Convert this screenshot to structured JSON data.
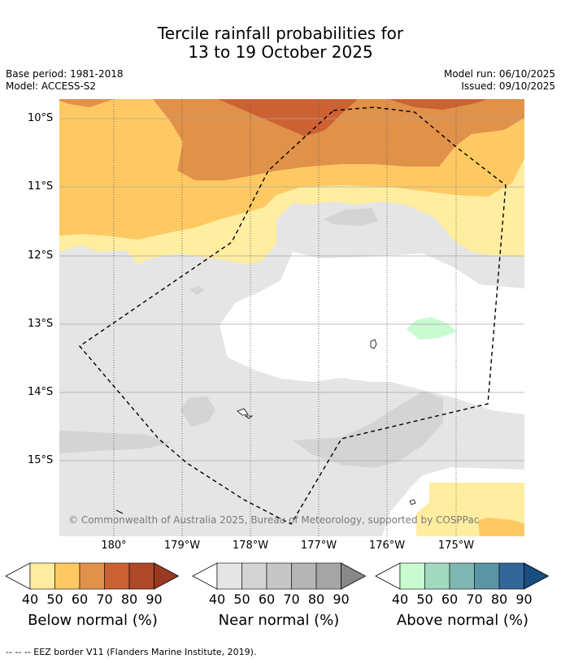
{
  "title_line1": "Tercile rainfall probabilities for",
  "title_line2": "13 to 19 October 2025",
  "base_period": "Base period: 1981-2018",
  "model": "Model: ACCESS-S2",
  "model_run": "Model run: 06/10/2025",
  "issued": "Issued: 09/10/2025",
  "map": {
    "lat_labels": [
      "10°S",
      "11°S",
      "12°S",
      "13°S",
      "14°S",
      "15°S"
    ],
    "lon_labels": [
      "180°",
      "179°W",
      "178°W",
      "177°W",
      "176°W",
      "175°W"
    ],
    "copyright": "© Commonwealth of Australia 2025, Bureau of Meteorology, supported by COSPPac"
  },
  "legend": {
    "below": {
      "label": "Below normal (%)",
      "ticks": [
        "40",
        "50",
        "60",
        "70",
        "80",
        "90"
      ],
      "colors": [
        "#ffeda0",
        "#fec962",
        "#e0914a",
        "#cc6233",
        "#ad4828",
        "#9a3a22"
      ]
    },
    "near": {
      "label": "Near normal (%)",
      "ticks": [
        "40",
        "50",
        "60",
        "70",
        "80",
        "90"
      ],
      "colors": [
        "#e5e5e5",
        "#d4d4d4",
        "#c6c6c6",
        "#b5b5b5",
        "#a5a5a5",
        "#888888"
      ]
    },
    "above": {
      "label": "Above normal (%)",
      "ticks": [
        "40",
        "50",
        "60",
        "70",
        "80",
        "90"
      ],
      "colors": [
        "#c8fbd0",
        "#a2d9be",
        "#7fb7b2",
        "#5b95a5",
        "#336799",
        "#184d80"
      ]
    }
  },
  "footnote": "--  --  -- EEZ border V11 (Flanders Marine Institute, 2019)."
}
